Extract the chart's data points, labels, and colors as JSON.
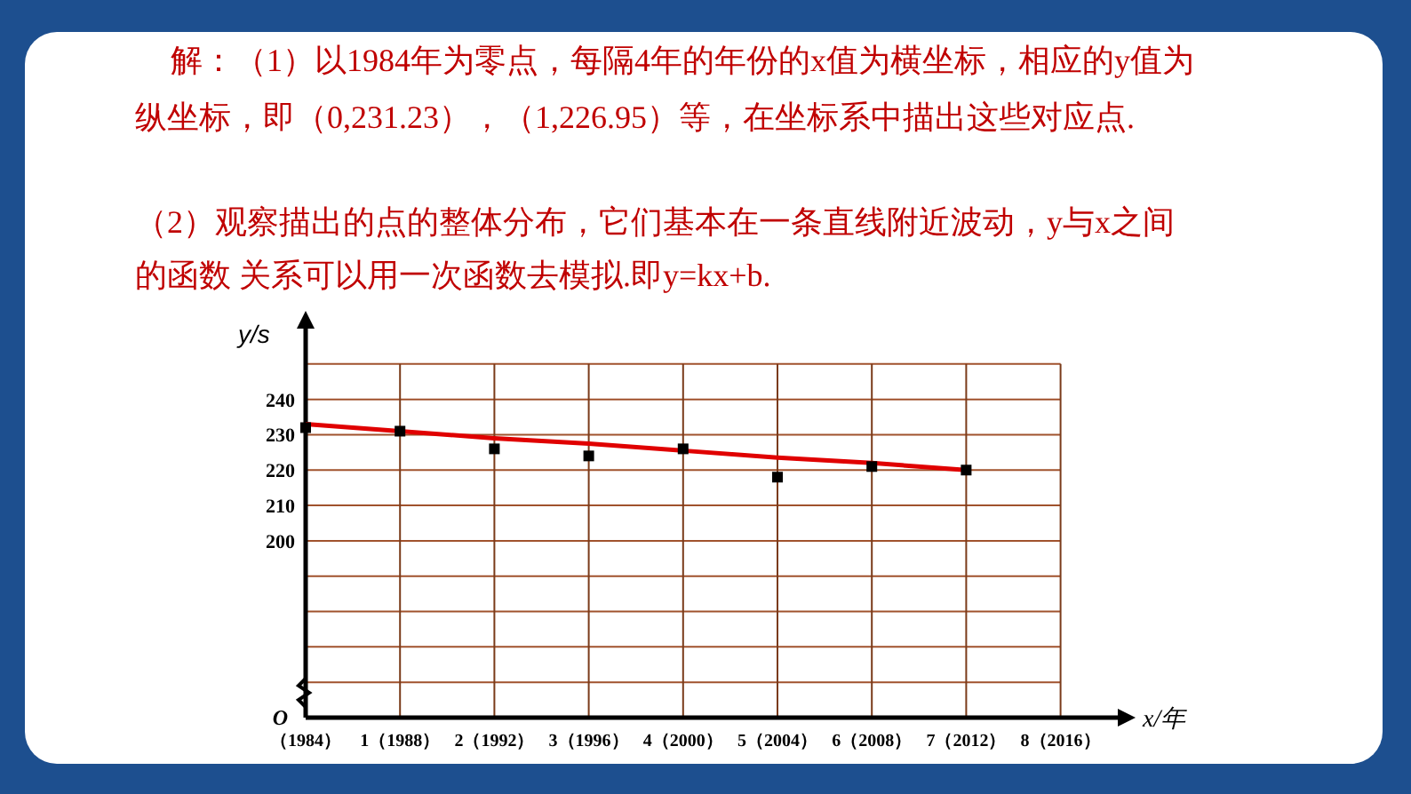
{
  "chart_data": {
    "type": "scatter",
    "title": "解：（1）以1984年为零点，每隔4年的年份的x值为横坐标，相应的y值为纵坐标，即（0,231.23），（1,226.95）等，在坐标系中描出这些对应点.",
    "subtitle": "（2）观察描出的点的整体分布，它们基本在一条直线附近波动，y与x之间的函数 关系可以用一次函数去模拟.即y=kx+b.",
    "xlabel": "x/年",
    "ylabel": "y/s",
    "annotations": [
      "O"
    ],
    "categories": [
      "（1984）",
      "1（1988）",
      "2（1992）",
      "3（1996）",
      "4（2000）",
      "5（2004）",
      "6（2008）",
      "7（2012）",
      "8（2016）"
    ],
    "ylim": [
      150,
      260
    ],
    "yticks": [
      {
        "value": 160,
        "label": null
      },
      {
        "value": 170,
        "label": null
      },
      {
        "value": 180,
        "label": null
      },
      {
        "value": 190,
        "label": null
      },
      200,
      210,
      220,
      230,
      240,
      {
        "value": 250,
        "label": null
      }
    ],
    "grid": true,
    "legend": false,
    "series": [
      {
        "type": "line",
        "line_style": "solid",
        "marker": "none",
        "color": "#e00000",
        "values": [
          233,
          231,
          229,
          227.5,
          225.5,
          223.5,
          222,
          220,
          null
        ]
      },
      {
        "marker": "square",
        "color": "#000000",
        "values": [
          232,
          231,
          226,
          224,
          226,
          218,
          221,
          220,
          null
        ]
      }
    ]
  }
}
